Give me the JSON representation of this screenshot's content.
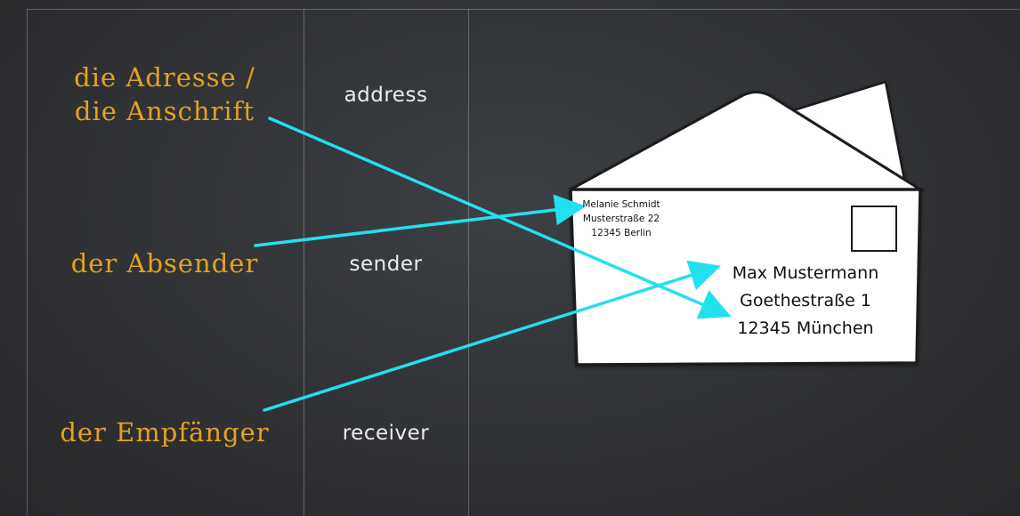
{
  "vocab": {
    "address_de_line1": "die Adresse /",
    "address_de_line2": "die Anschrift",
    "address_en": "address",
    "sender_de": "der Absender",
    "sender_en": "sender",
    "receiver_de": "der Empfänger",
    "receiver_en": "receiver"
  },
  "envelope": {
    "sender_address": {
      "name": "Melanie Schmidt",
      "street": "Musterstraße 22",
      "city": "12345 Berlin"
    },
    "receiver_address": {
      "name": "Max Mustermann",
      "street": "Goethestraße 1",
      "city": "12345 München"
    }
  },
  "colors": {
    "background": "#2e3033",
    "german_text": "#e3a21f",
    "english_text": "#ececec",
    "arrow": "#22e0ee",
    "envelope": "#ffffff"
  }
}
